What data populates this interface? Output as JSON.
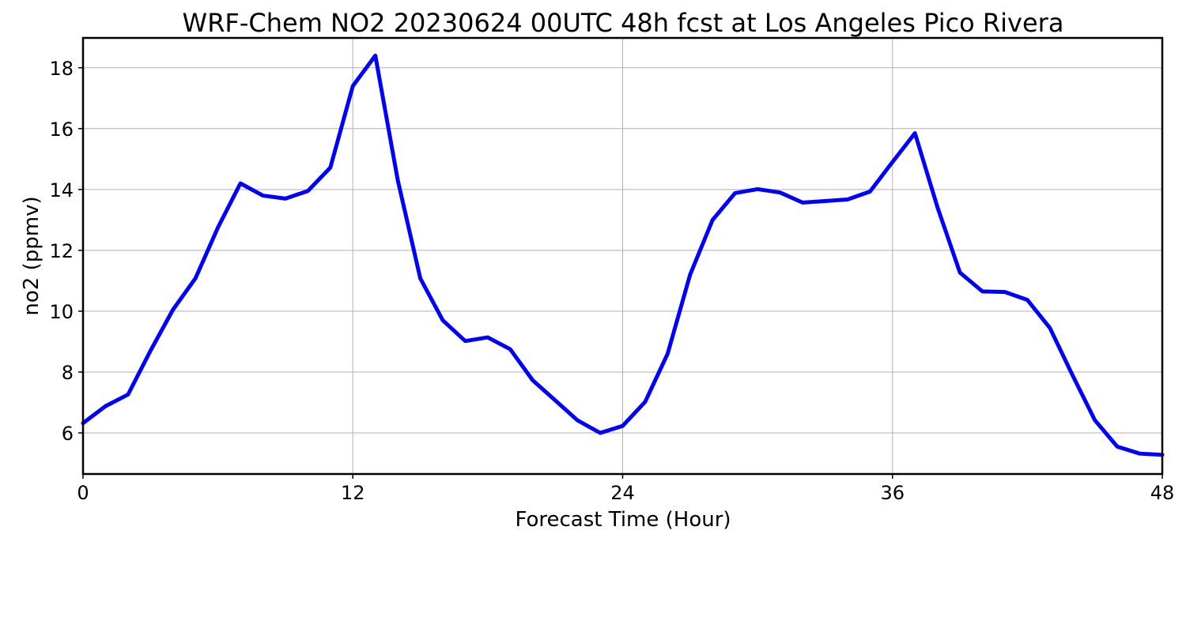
{
  "chart_data": {
    "type": "line",
    "title": "WRF-Chem NO2  20230624 00UTC 48h fcst at Los Angeles Pico Rivera",
    "xlabel": "Forecast Time (Hour)",
    "ylabel": "no2  (ppmv)",
    "xlim": [
      0,
      48
    ],
    "ylim": [
      4.65,
      18.98
    ],
    "xticks": [
      0,
      12,
      24,
      36,
      48
    ],
    "yticks": [
      6,
      8,
      10,
      12,
      14,
      16,
      18
    ],
    "grid": true,
    "series_color": "#0000ff",
    "series": [
      {
        "x": [
          0,
          1,
          2,
          3,
          4,
          5,
          6,
          7,
          8,
          9,
          10,
          11,
          12,
          13,
          14,
          15,
          16,
          17,
          18,
          19,
          20,
          21,
          22,
          23,
          24,
          25,
          26,
          27,
          28,
          29,
          30,
          31,
          32,
          33,
          34,
          35,
          36,
          37,
          38,
          39,
          40,
          41,
          42,
          43,
          44,
          45,
          46,
          47,
          48
        ],
        "values": [
          6.32,
          6.88,
          7.26,
          8.7,
          10.05,
          11.08,
          12.75,
          14.2,
          13.8,
          13.7,
          13.95,
          14.72,
          17.4,
          18.4,
          14.3,
          11.08,
          9.7,
          9.02,
          9.14,
          8.75,
          7.73,
          7.07,
          6.41,
          6.0,
          6.23,
          7.02,
          8.6,
          11.2,
          13.0,
          13.88,
          14.01,
          13.9,
          13.57,
          13.62,
          13.67,
          13.93,
          14.9,
          15.85,
          13.42,
          11.27,
          10.65,
          10.63,
          10.37,
          9.45,
          7.91,
          6.42,
          5.55,
          5.32,
          5.28
        ]
      }
    ]
  }
}
